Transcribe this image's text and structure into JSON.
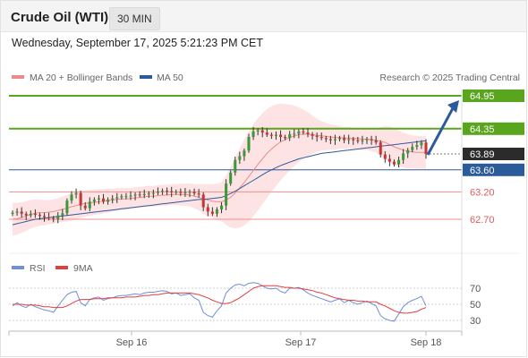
{
  "header": {
    "title": "Crude Oil (WTI)",
    "timeframe": "30 MIN",
    "datetime": "Wednesday, September 17, 2025 5:21:23 PM CET"
  },
  "legend": {
    "ma20_label": "MA 20 + Bollinger Bands",
    "ma50_label": "MA 50",
    "credit": "Research © 2025 Trading Central",
    "rsi_label": "RSI",
    "rsi_ma_label": "9MA"
  },
  "colors": {
    "green": "#5aa51e",
    "blue": "#2c5b9c",
    "red": "#e05a5a",
    "candle_up": "#3a9a3a",
    "candle_down": "#cc3333",
    "band_fill": "#fde3e3",
    "rsi_line": "#6f8fd6",
    "rsi_ma": "#e04040"
  },
  "chart_data": {
    "type": "candlestick",
    "x_ticks": [
      "Sep 16",
      "Sep 17",
      "Sep 18"
    ],
    "levels": [
      {
        "value": 64.95,
        "label": "64.95",
        "kind": "resistance"
      },
      {
        "value": 64.35,
        "label": "64.35",
        "kind": "resistance"
      },
      {
        "value": 63.89,
        "label": "63.89",
        "kind": "current"
      },
      {
        "value": 63.6,
        "label": "63.60",
        "kind": "pivot"
      },
      {
        "value": 63.2,
        "label": "63.20",
        "kind": "support"
      },
      {
        "value": 62.7,
        "label": "62.70",
        "kind": "support"
      }
    ],
    "close": [
      62.82,
      62.84,
      62.8,
      62.77,
      62.8,
      62.78,
      62.76,
      62.74,
      62.72,
      62.7,
      62.77,
      62.81,
      63.04,
      63.15,
      63.18,
      62.95,
      62.9,
      63.02,
      63.06,
      63.08,
      63.02,
      63.06,
      63.08,
      63.1,
      63.12,
      63.12,
      63.13,
      63.15,
      63.14,
      63.16,
      63.17,
      63.18,
      63.2,
      63.22,
      63.21,
      63.19,
      63.2,
      63.18,
      63.19,
      63.2,
      63.17,
      63.15,
      62.92,
      62.84,
      62.8,
      62.88,
      62.95,
      63.35,
      63.55,
      63.78,
      63.85,
      63.95,
      64.2,
      64.3,
      64.32,
      64.28,
      64.24,
      64.22,
      64.24,
      64.2,
      64.18,
      64.25,
      64.26,
      64.3,
      64.28,
      64.25,
      64.22,
      64.2,
      64.18,
      64.16,
      64.14,
      64.16,
      64.18,
      64.14,
      64.16,
      64.14,
      64.12,
      64.14,
      64.16,
      64.14,
      64.1,
      63.88,
      63.8,
      63.75,
      63.7,
      63.78,
      63.9,
      63.96,
      64.02,
      64.05,
      64.1,
      63.89
    ],
    "ma20": [
      62.7,
      62.71,
      62.73,
      62.76,
      62.79,
      62.81,
      62.82,
      62.82,
      62.83,
      62.84,
      62.86,
      62.88,
      62.9,
      62.93,
      62.95,
      62.97,
      62.99,
      63.0,
      63.01,
      63.02,
      63.03,
      63.04,
      63.05,
      63.06,
      63.07,
      63.07,
      63.08,
      63.09,
      63.1,
      63.11,
      63.12,
      63.12,
      63.13,
      63.14,
      63.14,
      63.15,
      63.15,
      63.15,
      63.15,
      63.14,
      63.12,
      63.1,
      63.07,
      63.05,
      63.03,
      63.02,
      63.02,
      63.05,
      63.1,
      63.18,
      63.27,
      63.37,
      63.48,
      63.59,
      63.7,
      63.8,
      63.9,
      63.98,
      64.05,
      64.11,
      64.15,
      64.19,
      64.22,
      64.24,
      64.25,
      64.25,
      64.24,
      64.23,
      64.22,
      64.21,
      64.2,
      64.19,
      64.19,
      64.18,
      64.18,
      64.17,
      64.17,
      64.16,
      64.16,
      64.15,
      64.14,
      64.12,
      64.1,
      64.06,
      64.02,
      63.99,
      63.96,
      63.94,
      63.93,
      63.92,
      63.92,
      63.92
    ],
    "ma50": [
      62.6,
      62.62,
      62.64,
      62.66,
      62.68,
      62.7,
      62.71,
      62.72,
      62.73,
      62.74,
      62.75,
      62.76,
      62.77,
      62.78,
      62.79,
      62.8,
      62.81,
      62.82,
      62.83,
      62.84,
      62.85,
      62.86,
      62.87,
      62.88,
      62.89,
      62.9,
      62.91,
      62.92,
      62.93,
      62.94,
      62.95,
      62.96,
      62.97,
      62.98,
      62.99,
      63.0,
      63.01,
      63.02,
      63.03,
      63.04,
      63.05,
      63.06,
      63.06,
      63.07,
      63.08,
      63.09,
      63.1,
      63.13,
      63.17,
      63.21,
      63.26,
      63.31,
      63.36,
      63.41,
      63.46,
      63.51,
      63.56,
      63.6,
      63.64,
      63.68,
      63.71,
      63.74,
      63.77,
      63.8,
      63.82,
      63.84,
      63.86,
      63.88,
      63.9,
      63.91,
      63.92,
      63.93,
      63.94,
      63.95,
      63.96,
      63.97,
      63.98,
      63.99,
      64.0,
      64.01,
      64.02,
      64.03,
      64.04,
      64.05,
      64.06,
      64.07,
      64.08,
      64.09,
      64.1,
      64.11,
      64.12,
      64.13
    ],
    "bb_width": [
      0.3,
      0.29,
      0.28,
      0.27,
      0.26,
      0.25,
      0.24,
      0.23,
      0.22,
      0.22,
      0.22,
      0.23,
      0.24,
      0.25,
      0.25,
      0.25,
      0.24,
      0.24,
      0.23,
      0.23,
      0.22,
      0.22,
      0.21,
      0.21,
      0.2,
      0.2,
      0.19,
      0.19,
      0.19,
      0.19,
      0.19,
      0.19,
      0.19,
      0.19,
      0.19,
      0.19,
      0.19,
      0.2,
      0.2,
      0.21,
      0.22,
      0.24,
      0.27,
      0.29,
      0.31,
      0.33,
      0.35,
      0.45,
      0.55,
      0.65,
      0.72,
      0.78,
      0.82,
      0.84,
      0.84,
      0.83,
      0.81,
      0.78,
      0.74,
      0.7,
      0.65,
      0.6,
      0.55,
      0.5,
      0.45,
      0.4,
      0.35,
      0.3,
      0.27,
      0.25,
      0.23,
      0.22,
      0.21,
      0.2,
      0.2,
      0.2,
      0.2,
      0.2,
      0.2,
      0.21,
      0.22,
      0.26,
      0.3,
      0.33,
      0.34,
      0.33,
      0.32,
      0.31,
      0.3,
      0.3,
      0.3,
      0.3
    ],
    "y_range": [
      62.25,
      65.3
    ],
    "rsi_ticks": [
      70,
      50,
      30
    ],
    "rsi_range": [
      20,
      80
    ],
    "rsi": [
      48,
      52,
      48,
      46,
      50,
      47,
      45,
      43,
      42,
      40,
      48,
      55,
      62,
      65,
      66,
      52,
      48,
      56,
      58,
      59,
      55,
      57,
      58,
      60,
      61,
      61,
      62,
      63,
      62,
      64,
      65,
      65,
      66,
      67,
      66,
      63,
      64,
      61,
      62,
      63,
      58,
      55,
      40,
      36,
      34,
      42,
      48,
      64,
      70,
      74,
      75,
      73,
      76,
      77,
      76,
      73,
      70,
      69,
      70,
      66,
      64,
      70,
      70,
      71,
      68,
      64,
      61,
      59,
      57,
      55,
      53,
      55,
      57,
      52,
      55,
      52,
      50,
      52,
      54,
      51,
      48,
      36,
      32,
      30,
      29,
      38,
      47,
      52,
      55,
      57,
      60,
      48
    ],
    "rsi_ma": [
      50,
      50,
      50,
      49,
      49,
      49,
      48,
      47,
      47,
      46,
      46,
      46,
      48,
      51,
      54,
      56,
      56,
      56,
      57,
      57,
      57,
      58,
      58,
      58,
      58,
      59,
      59,
      59,
      60,
      61,
      61,
      62,
      62,
      63,
      64,
      64,
      64,
      64,
      64,
      64,
      63,
      62,
      60,
      58,
      55,
      53,
      51,
      51,
      52,
      55,
      58,
      62,
      66,
      70,
      72,
      73,
      73,
      73,
      73,
      72,
      71,
      71,
      70,
      70,
      69,
      68,
      67,
      65,
      64,
      62,
      60,
      58,
      57,
      56,
      55,
      55,
      54,
      54,
      53,
      53,
      53,
      50,
      48,
      45,
      42,
      40,
      39,
      39,
      40,
      41,
      44,
      46
    ]
  }
}
